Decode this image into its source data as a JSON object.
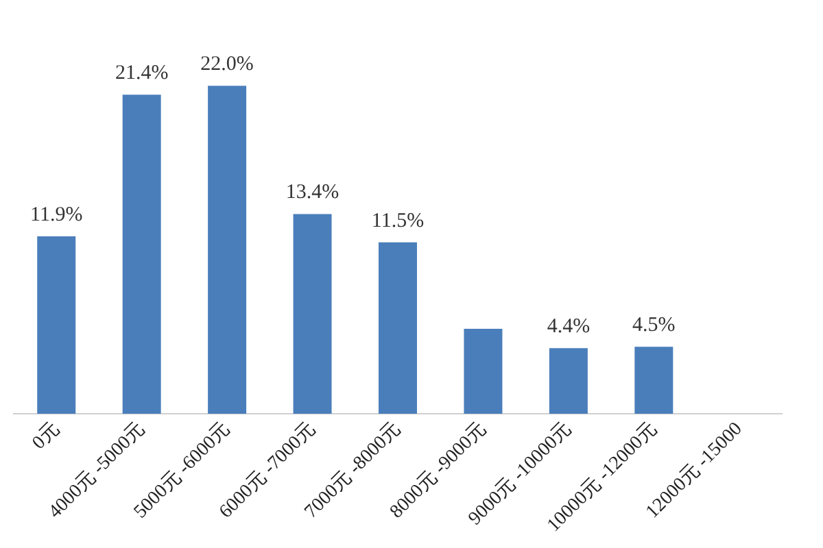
{
  "chart_data": {
    "type": "bar",
    "categories": [
      "0元",
      "4000元 -5000元",
      "5000元 -6000元",
      "6000元 -7000元",
      "7000元 -8000元",
      "8000元 -9000元",
      "9000元 -10000元",
      "10000元 -12000元",
      "12000元 -15000"
    ],
    "values": [
      11.9,
      21.4,
      22.0,
      13.4,
      11.5,
      5.7,
      4.4,
      4.5,
      null
    ],
    "value_labels": [
      "11.9%",
      "21.4%",
      "22.0%",
      "13.4%",
      "11.5%",
      null,
      "4.4%",
      "4.5%",
      null
    ],
    "color": "#4a7ebb"
  }
}
